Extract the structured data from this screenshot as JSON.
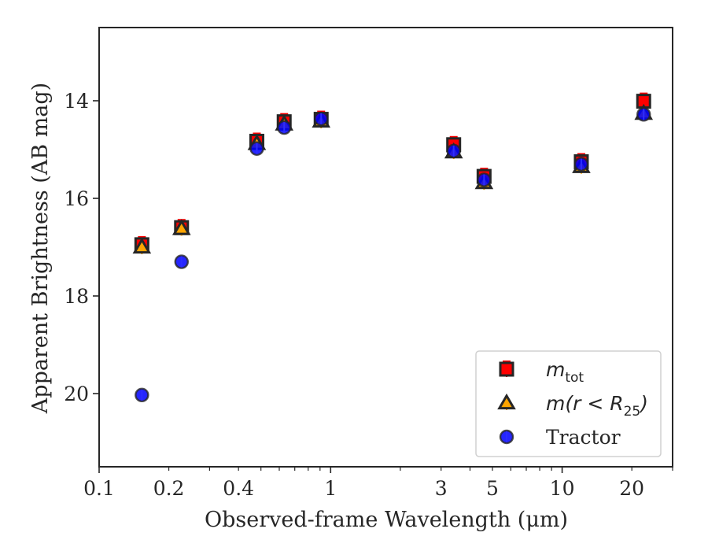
{
  "chart_data": {
    "type": "scatter",
    "xlabel": "Observed-frame Wavelength (μm)",
    "ylabel": "Apparent Brightness (AB mag)",
    "x_scale": "log",
    "y_inverted": true,
    "xlim": [
      0.1,
      30
    ],
    "ylim": [
      21.5,
      12.5
    ],
    "x_ticks": [
      {
        "value": 0.1,
        "label": "0.1"
      },
      {
        "value": 0.2,
        "label": "0.2"
      },
      {
        "value": 0.4,
        "label": "0.4"
      },
      {
        "value": 1,
        "label": "1"
      },
      {
        "value": 3,
        "label": "3"
      },
      {
        "value": 5,
        "label": "5"
      },
      {
        "value": 10,
        "label": "10"
      },
      {
        "value": 20,
        "label": "20"
      }
    ],
    "y_ticks": [
      {
        "value": 14,
        "label": "14"
      },
      {
        "value": 16,
        "label": "16"
      },
      {
        "value": 18,
        "label": "18"
      },
      {
        "value": 20,
        "label": "20"
      }
    ],
    "legend_position": "lower-right",
    "grid": false,
    "series": [
      {
        "name": "m_tot",
        "marker": "square",
        "color": "#ff0000",
        "edge": "#262626",
        "points": [
          {
            "x": 0.153,
            "y": 16.95
          },
          {
            "x": 0.227,
            "y": 16.6
          },
          {
            "x": 0.48,
            "y": 14.83
          },
          {
            "x": 0.63,
            "y": 14.43
          },
          {
            "x": 0.91,
            "y": 14.38
          },
          {
            "x": 3.4,
            "y": 14.9
          },
          {
            "x": 4.6,
            "y": 15.55
          },
          {
            "x": 12.1,
            "y": 15.25
          },
          {
            "x": 22.5,
            "y": 14.01
          }
        ]
      },
      {
        "name": "m(r < R25)",
        "marker": "triangle",
        "color": "#ffa500",
        "edge": "#262626",
        "points": [
          {
            "x": 0.153,
            "y": 17.0
          },
          {
            "x": 0.227,
            "y": 16.62
          },
          {
            "x": 0.48,
            "y": 14.88
          },
          {
            "x": 0.63,
            "y": 14.48
          },
          {
            "x": 0.91,
            "y": 14.42
          },
          {
            "x": 3.4,
            "y": 15.05
          },
          {
            "x": 4.6,
            "y": 15.68
          },
          {
            "x": 12.1,
            "y": 15.35
          },
          {
            "x": 22.5,
            "y": 14.26
          }
        ]
      },
      {
        "name": "Tractor",
        "marker": "circle",
        "color": "#0000ff",
        "edge": "#262626",
        "points": [
          {
            "x": 0.153,
            "y": 20.03
          },
          {
            "x": 0.227,
            "y": 17.3
          },
          {
            "x": 0.48,
            "y": 14.98
          },
          {
            "x": 0.63,
            "y": 14.55
          },
          {
            "x": 0.91,
            "y": 14.37
          },
          {
            "x": 3.4,
            "y": 15.03
          },
          {
            "x": 4.6,
            "y": 15.62
          },
          {
            "x": 12.1,
            "y": 15.3
          },
          {
            "x": 22.5,
            "y": 14.28
          }
        ]
      }
    ]
  },
  "legend": {
    "entries": [
      {
        "label_main": "m",
        "label_sub": "tot",
        "label_rest": ""
      },
      {
        "label_main": "m(r < R",
        "label_sub": "25",
        "label_rest": ")"
      },
      {
        "label_main": "Tractor",
        "label_sub": "",
        "label_rest": ""
      }
    ]
  }
}
